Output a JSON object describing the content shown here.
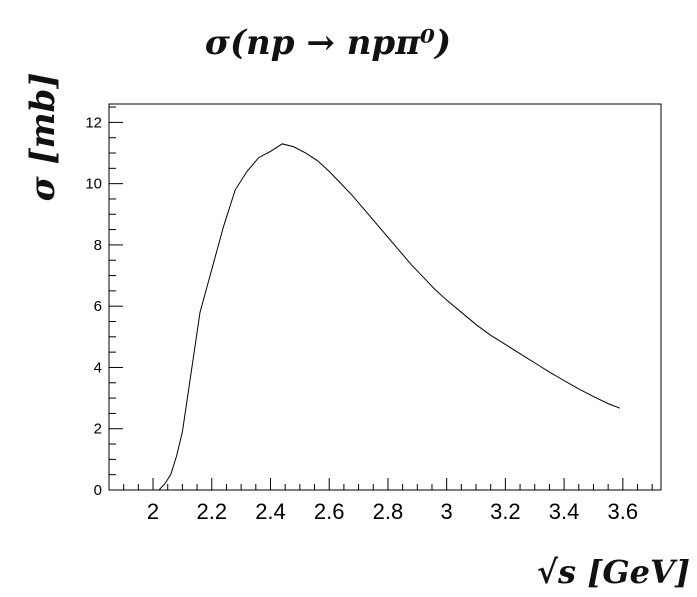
{
  "chart_data": {
    "type": "line",
    "title": "σ(np → npπ⁰)",
    "xlabel": "√s [GeV]",
    "ylabel": "σ [mb]",
    "xlim": [
      1.85,
      3.73
    ],
    "ylim": [
      0,
      12.6
    ],
    "x_ticks": [
      2,
      2.2,
      2.4,
      2.6,
      2.8,
      3,
      3.2,
      3.4,
      3.6
    ],
    "x_tick_labels": [
      "2",
      "2.2",
      "2.4",
      "2.6",
      "2.8",
      "3",
      "3.2",
      "3.4",
      "3.6"
    ],
    "y_ticks": [
      0,
      2,
      4,
      6,
      8,
      10,
      12
    ],
    "y_tick_labels": [
      "0",
      "2",
      "4",
      "6",
      "8",
      "10",
      "12"
    ],
    "grid": false,
    "series": [
      {
        "x": [
          2.02,
          2.04,
          2.06,
          2.08,
          2.1,
          2.12,
          2.14,
          2.16,
          2.18,
          2.2,
          2.22,
          2.24,
          2.28,
          2.32,
          2.36,
          2.4,
          2.44,
          2.48,
          2.52,
          2.56,
          2.6,
          2.64,
          2.68,
          2.72,
          2.76,
          2.8,
          2.84,
          2.88,
          2.92,
          2.96,
          3.0,
          3.05,
          3.1,
          3.15,
          3.2,
          3.25,
          3.3,
          3.35,
          3.4,
          3.45,
          3.5,
          3.55,
          3.59
        ],
        "y": [
          0.0,
          0.2,
          0.5,
          1.1,
          1.9,
          3.2,
          4.5,
          5.8,
          6.5,
          7.2,
          7.9,
          8.6,
          9.8,
          10.4,
          10.85,
          11.05,
          11.3,
          11.2,
          11.0,
          10.75,
          10.4,
          10.0,
          9.6,
          9.15,
          8.7,
          8.25,
          7.8,
          7.35,
          6.95,
          6.55,
          6.2,
          5.8,
          5.4,
          5.05,
          4.75,
          4.45,
          4.15,
          3.85,
          3.57,
          3.3,
          3.05,
          2.82,
          2.67
        ]
      }
    ]
  }
}
